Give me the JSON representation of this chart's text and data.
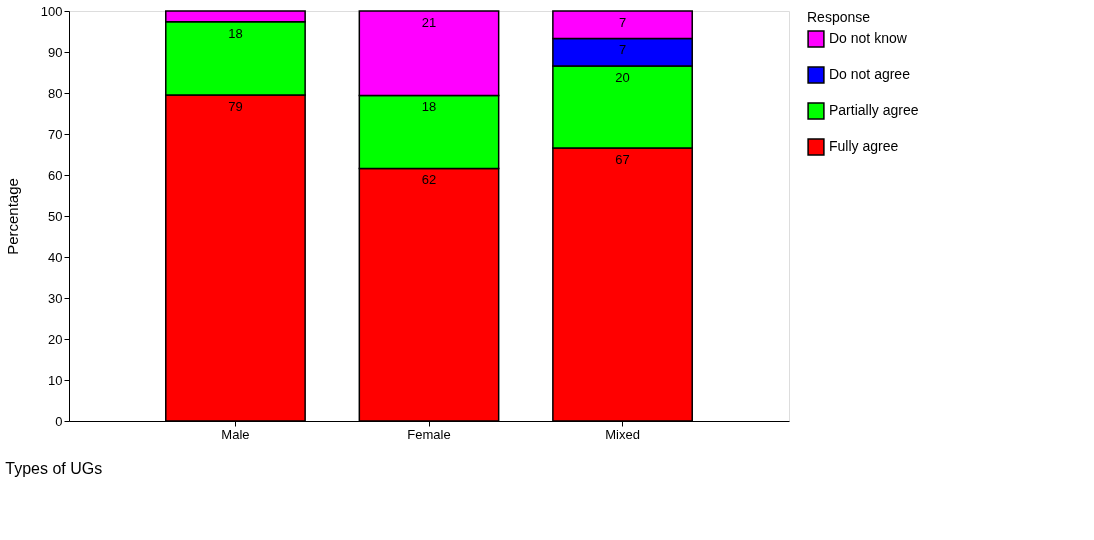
{
  "chart_data": {
    "type": "bar",
    "stacked": true,
    "xlabel": "Types of UGs",
    "ylabel": "Percentage",
    "legend_title": "Response",
    "legend": "right",
    "categories": [
      "Male",
      "Female",
      "Mixed"
    ],
    "ylim": [
      0,
      100
    ],
    "yticks": [
      0,
      10,
      20,
      30,
      40,
      50,
      60,
      70,
      80,
      90,
      100
    ],
    "series": [
      {
        "name": "Fully agree",
        "color": "#ff0000",
        "values": [
          79.5,
          61.6,
          66.6
        ],
        "value_labels": [
          "79",
          "62",
          "67"
        ]
      },
      {
        "name": "Partially agree",
        "color": "#00ff00",
        "values": [
          17.9,
          17.8,
          20
        ],
        "value_labels": [
          "18",
          "18",
          "20"
        ]
      },
      {
        "name": "Do not agree",
        "color": "#0000ff",
        "values": [
          null,
          null,
          6.7
        ],
        "value_labels": [
          null,
          null,
          "7"
        ]
      },
      {
        "name": "Do not know",
        "color": "#ff00ff",
        "values": [
          2.6,
          20.6,
          6.7
        ],
        "value_labels": [
          null,
          "21",
          "7"
        ]
      }
    ]
  }
}
